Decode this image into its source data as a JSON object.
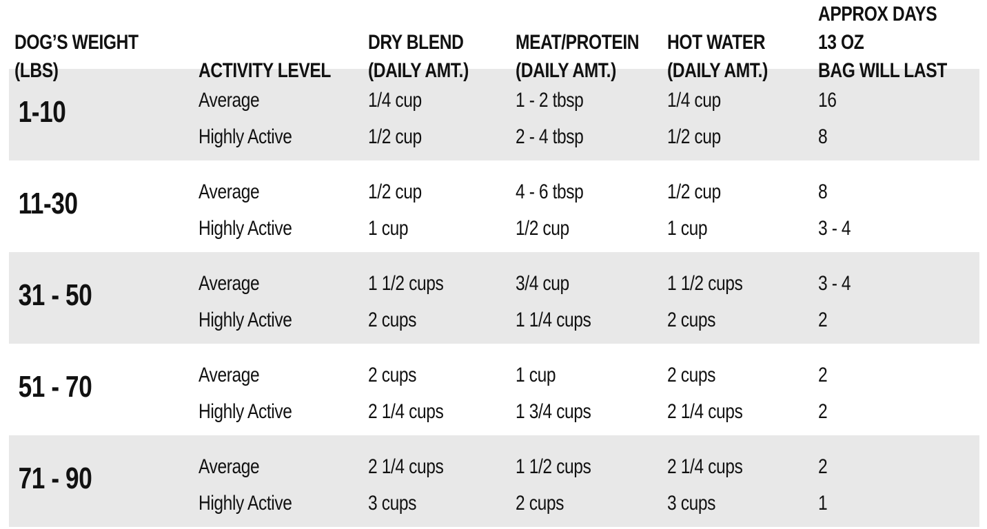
{
  "colors": {
    "background": "#ffffff",
    "stripe": "#e8e8e8",
    "text": "#111111"
  },
  "table": {
    "columns": [
      {
        "label": "DOG’S WEIGHT (LBS)"
      },
      {
        "label": "ACTIVITY LEVEL"
      },
      {
        "label": "DRY BLEND\n(DAILY AMT.)"
      },
      {
        "label": "MEAT/PROTEIN\n(DAILY AMT.)"
      },
      {
        "label": "HOT WATER\n(DAILY AMT.)"
      },
      {
        "label": "APPROX DAYS 13 OZ\nBAG WILL LAST"
      }
    ],
    "rows": [
      {
        "weight": "1-10",
        "average": {
          "activity": "Average",
          "dry_blend": "1/4 cup",
          "meat_protein": "1 - 2 tbsp",
          "hot_water": "1/4 cup",
          "days": "16"
        },
        "highly_active": {
          "activity": "Highly Active",
          "dry_blend": "1/2 cup",
          "meat_protein": "2 - 4 tbsp",
          "hot_water": "1/2 cup",
          "days": "8"
        }
      },
      {
        "weight": "11-30",
        "average": {
          "activity": "Average",
          "dry_blend": "1/2 cup",
          "meat_protein": "4 - 6 tbsp",
          "hot_water": "1/2 cup",
          "days": "8"
        },
        "highly_active": {
          "activity": "Highly Active",
          "dry_blend": "1 cup",
          "meat_protein": "1/2 cup",
          "hot_water": "1 cup",
          "days": "3 - 4"
        }
      },
      {
        "weight": "31 - 50",
        "average": {
          "activity": "Average",
          "dry_blend": "1 1/2 cups",
          "meat_protein": "3/4 cup",
          "hot_water": "1 1/2 cups",
          "days": "3 - 4"
        },
        "highly_active": {
          "activity": "Highly Active",
          "dry_blend": "2 cups",
          "meat_protein": "1 1/4 cups",
          "hot_water": "2 cups",
          "days": "2"
        }
      },
      {
        "weight": "51 - 70",
        "average": {
          "activity": "Average",
          "dry_blend": "2 cups",
          "meat_protein": "1 cup",
          "hot_water": "2 cups",
          "days": "2"
        },
        "highly_active": {
          "activity": "Highly Active",
          "dry_blend": "2 1/4 cups",
          "meat_protein": "1 3/4 cups",
          "hot_water": "2 1/4 cups",
          "days": "2"
        }
      },
      {
        "weight": "71 - 90",
        "average": {
          "activity": "Average",
          "dry_blend": "2 1/4 cups",
          "meat_protein": "1 1/2 cups",
          "hot_water": "2 1/4 cups",
          "days": "2"
        },
        "highly_active": {
          "activity": "Highly Active",
          "dry_blend": "3 cups",
          "meat_protein": "2 cups",
          "hot_water": "3 cups",
          "days": "1"
        }
      }
    ]
  }
}
